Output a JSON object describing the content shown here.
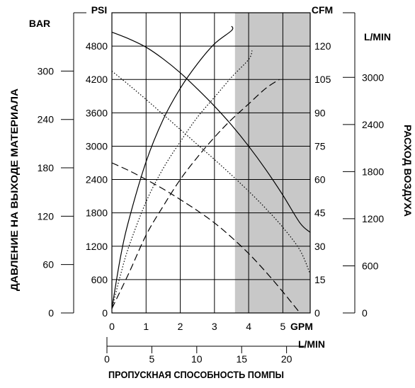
{
  "chart_data": {
    "type": "line",
    "units": {
      "bar": "BAR",
      "psi": "PSI",
      "cfm": "CFM",
      "lmin_air": "L/MIN",
      "gpm": "GPM",
      "lmin_flow": "L/MIN"
    },
    "axis_titles": {
      "left": "ДАВЛЕНИЕ НА ВЫХОДЕ МАТЕРИАЛА",
      "right": "РАСХОД ВОЗДУХА",
      "bottom": "ПРОПУСКНАЯ СПОСОБНОСТЬ ПОМПЫ"
    },
    "axes": {
      "gpm": {
        "range": [
          0,
          5.8
        ],
        "ticks": [
          "0",
          "1",
          "2",
          "3",
          "4",
          "5"
        ]
      },
      "psi": {
        "range": [
          0,
          5400
        ],
        "ticks": [
          "600",
          "1200",
          "1800",
          "2400",
          "3000",
          "3600",
          "4200",
          "4800"
        ]
      },
      "bar": {
        "range": [
          0,
          372.4
        ],
        "ticks": [
          "0",
          "60",
          "120",
          "180",
          "240",
          "300"
        ]
      },
      "cfm": {
        "range": [
          0,
          135
        ],
        "ticks": [
          "0",
          "15",
          "30",
          "45",
          "60",
          "75",
          "90",
          "105",
          "120"
        ]
      },
      "lmin_air": {
        "range": [
          0,
          3823
        ],
        "ticks": [
          "0",
          "600",
          "1200",
          "1800",
          "2400",
          "3000"
        ]
      },
      "lmin_flow": {
        "range": [
          0,
          22
        ],
        "ticks": [
          "0",
          "5",
          "10",
          "15",
          "20"
        ]
      }
    },
    "shaded_region_gpm": [
      3.6,
      5.8
    ],
    "grid": true,
    "series": [
      {
        "kind": "pressure",
        "axis": "psi",
        "style": "solid",
        "x": [
          0,
          0.5,
          1,
          1.5,
          2,
          2.5,
          3,
          3.5,
          4,
          4.5,
          5,
          5.5,
          5.8
        ],
        "y": [
          5050,
          4930,
          4780,
          4570,
          4320,
          4030,
          3720,
          3380,
          3000,
          2580,
          2120,
          1620,
          1450
        ]
      },
      {
        "kind": "pressure",
        "axis": "psi",
        "style": "dotted",
        "x": [
          0,
          0.5,
          1,
          1.5,
          2,
          2.5,
          3,
          3.5,
          4,
          4.5,
          5,
          5.5,
          5.8
        ],
        "y": [
          4350,
          4100,
          3840,
          3570,
          3300,
          3030,
          2760,
          2480,
          2190,
          1880,
          1540,
          1130,
          700
        ]
      },
      {
        "kind": "pressure",
        "axis": "psi",
        "style": "dashed",
        "x": [
          0,
          0.5,
          1,
          1.5,
          2,
          2.5,
          3,
          3.5,
          4,
          4.5,
          5,
          5.5
        ],
        "y": [
          2700,
          2560,
          2400,
          2230,
          2040,
          1840,
          1620,
          1360,
          1070,
          740,
          380,
          0
        ]
      },
      {
        "kind": "air",
        "axis": "cfm",
        "style": "solid",
        "x": [
          0,
          0.25,
          0.5,
          1,
          1.5,
          2,
          2.5,
          3,
          3.5,
          3.5
        ],
        "y": [
          2,
          25,
          42,
          68,
          87,
          101,
          112,
          121,
          127,
          129
        ]
      },
      {
        "kind": "air",
        "axis": "cfm",
        "style": "dotted",
        "x": [
          0,
          0.25,
          0.5,
          1,
          1.5,
          2,
          2.5,
          3,
          3.5,
          4,
          4.1
        ],
        "y": [
          2,
          17,
          30,
          50,
          65,
          77,
          88,
          97,
          106,
          114,
          118
        ]
      },
      {
        "kind": "air",
        "axis": "cfm",
        "style": "dashed",
        "x": [
          0,
          0.5,
          1,
          1.5,
          2,
          2.5,
          3,
          3.5,
          4,
          4.5,
          4.9
        ],
        "y": [
          2,
          18,
          35,
          48,
          60,
          70,
          79,
          87,
          94,
          101,
          105
        ]
      }
    ]
  }
}
